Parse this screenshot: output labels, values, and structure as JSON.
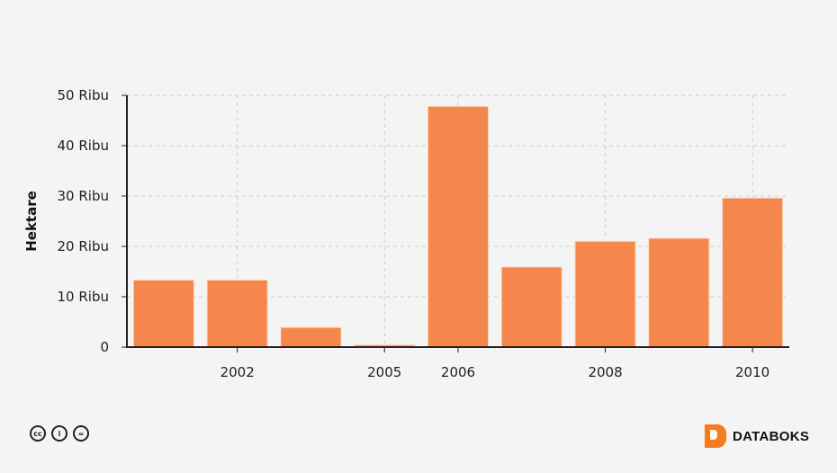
{
  "chart_data": {
    "type": "bar",
    "categories": [
      "",
      "2002",
      "",
      "2005",
      "2006",
      "",
      "2008",
      "",
      "2010"
    ],
    "values": [
      13300,
      13300,
      3900,
      400,
      47800,
      15900,
      21000,
      21600,
      29600
    ],
    "ylabel": "Hektare",
    "xlabel": "",
    "ylim": [
      0,
      50000
    ],
    "yticks": [
      {
        "value": 0,
        "label": "0"
      },
      {
        "value": 10000,
        "label": "10 Ribu"
      },
      {
        "value": 20000,
        "label": "20 Ribu"
      },
      {
        "value": 30000,
        "label": "30 Ribu"
      },
      {
        "value": 40000,
        "label": "40 Ribu"
      },
      {
        "value": 50000,
        "label": "50 Ribu"
      }
    ],
    "grid": true,
    "bar_color": "#f4874b"
  },
  "footer": {
    "license_icons": [
      "cc-icon",
      "by-icon",
      "nd-icon"
    ],
    "brand": "DATABOKS",
    "brand_color": "#f47b20"
  }
}
